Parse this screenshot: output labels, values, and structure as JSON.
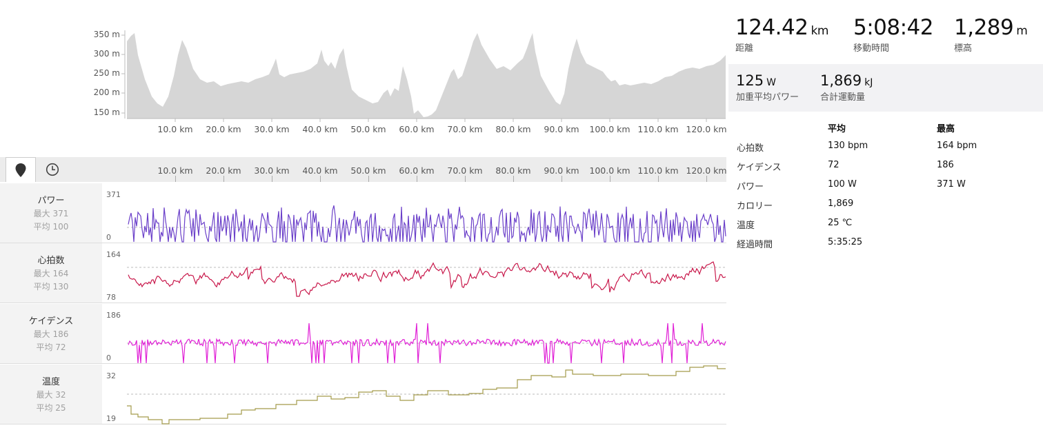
{
  "elevation": {
    "y_ticks": [
      "350 m",
      "300 m",
      "250 m",
      "200 m",
      "150 m"
    ],
    "x_ticks": [
      "10.0 km",
      "20.0 km",
      "30.0 km",
      "40.0 km",
      "50.0 km",
      "60.0 km",
      "70.0 km",
      "80.0 km",
      "90.0 km",
      "100.0 km",
      "110.0 km",
      "120.0 km"
    ]
  },
  "tabs": {
    "map_icon": "map-pin-icon",
    "time_icon": "clock-icon"
  },
  "streams": [
    {
      "id": "power",
      "name": "パワー",
      "max_label": "最大 371",
      "avg_label": "平均 100",
      "scale_top": "371",
      "scale_bottom": "0",
      "color": "#6a3fc9"
    },
    {
      "id": "heartrate",
      "name": "心拍数",
      "max_label": "最大 164",
      "avg_label": "平均 130",
      "scale_top": "164",
      "scale_bottom": "78",
      "color": "#c8174a"
    },
    {
      "id": "cadence",
      "name": "ケイデンス",
      "max_label": "最大 186",
      "avg_label": "平均 72",
      "scale_top": "186",
      "scale_bottom": "0",
      "color": "#e01fd6"
    },
    {
      "id": "temp",
      "name": "温度",
      "max_label": "最大 32",
      "avg_label": "平均 25",
      "scale_top": "32",
      "scale_bottom": "19",
      "color": "#a39b4b"
    }
  ],
  "summary": {
    "distance": {
      "value": "124.42",
      "unit": "km",
      "label": "距離"
    },
    "moving_time": {
      "value": "5:08:42",
      "unit": "",
      "label": "移動時間"
    },
    "elevation": {
      "value": "1,289",
      "unit": "m",
      "label": "標高"
    },
    "weighted_power": {
      "value": "125",
      "unit": "W",
      "label": "加重平均パワー"
    },
    "work": {
      "value": "1,869",
      "unit": "kJ",
      "label": "合計運動量"
    }
  },
  "table": {
    "headers": [
      "",
      "平均",
      "最高"
    ],
    "rows": [
      [
        "心拍数",
        "130 bpm",
        "164 bpm"
      ],
      [
        "ケイデンス",
        "72",
        "186"
      ],
      [
        "パワー",
        "100 W",
        "371 W"
      ],
      [
        "カロリー",
        "1,869",
        ""
      ],
      [
        "温度",
        "25 ℃",
        ""
      ],
      [
        "経過時間",
        "5:35:25",
        ""
      ]
    ]
  },
  "colors": {
    "elevation_fill": "#d6d6d6",
    "panel_bg": "#f2f2f4",
    "label_bg": "#f3f3f3"
  }
}
